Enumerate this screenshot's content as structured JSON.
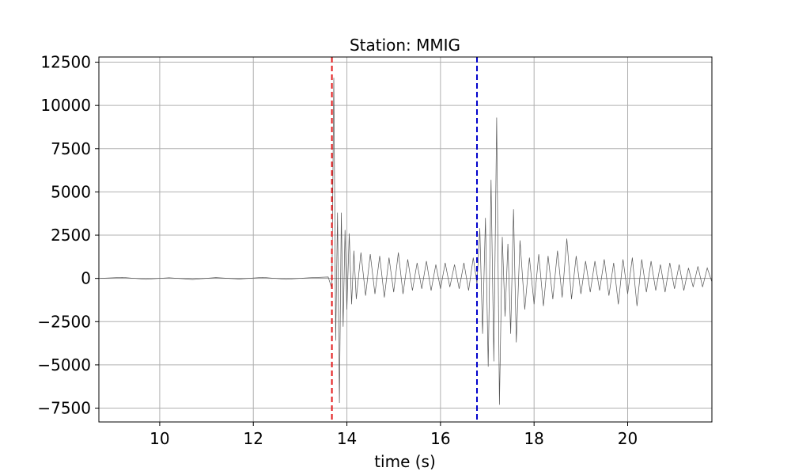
{
  "chart_data": {
    "type": "line",
    "title": "Station: MMIG",
    "xlabel": "time (s)",
    "ylabel": "",
    "xlim": [
      8.7,
      21.8
    ],
    "ylim": [
      -8300,
      12800
    ],
    "grid": true,
    "x_ticks": [
      10,
      12,
      14,
      16,
      18,
      20
    ],
    "y_ticks": [
      -7500,
      -5000,
      -2500,
      0,
      2500,
      5000,
      7500,
      10000,
      12500
    ],
    "x_tick_labels": [
      "10",
      "12",
      "14",
      "16",
      "18",
      "20"
    ],
    "y_tick_labels": [
      "−7500",
      "−5000",
      "−2500",
      "0",
      "2500",
      "5000",
      "7500",
      "10000",
      "12500"
    ],
    "colors": {
      "trace": "#555555",
      "p_pick": "#e31a1c",
      "s_pick": "#0000cc",
      "grid": "#b0b0b0",
      "zero_line": "#999999"
    },
    "series": [
      {
        "x": [
          8.7,
          9.2,
          9.7,
          10.2,
          10.7,
          11.2,
          11.7,
          12.2,
          12.7,
          13.2,
          13.6,
          13.68,
          13.72,
          13.76,
          13.8,
          13.84,
          13.88,
          13.92,
          13.96,
          14.0,
          14.05,
          14.1,
          14.15,
          14.2,
          14.3,
          14.4,
          14.5,
          14.6,
          14.7,
          14.8,
          14.9,
          15.0,
          15.1,
          15.2,
          15.3,
          15.4,
          15.5,
          15.6,
          15.7,
          15.8,
          15.9,
          16.0,
          16.1,
          16.2,
          16.3,
          16.4,
          16.5,
          16.6,
          16.7,
          16.78,
          16.84,
          16.9,
          16.96,
          17.02,
          17.08,
          17.14,
          17.2,
          17.26,
          17.32,
          17.38,
          17.44,
          17.5,
          17.56,
          17.62,
          17.7,
          17.8,
          17.9,
          18.0,
          18.1,
          18.2,
          18.3,
          18.4,
          18.5,
          18.6,
          18.7,
          18.8,
          18.9,
          19.0,
          19.1,
          19.2,
          19.3,
          19.4,
          19.5,
          19.6,
          19.7,
          19.8,
          19.9,
          20.0,
          20.1,
          20.2,
          20.3,
          20.4,
          20.5,
          20.6,
          20.7,
          20.8,
          20.9,
          21.0,
          21.1,
          21.2,
          21.3,
          21.4,
          21.5,
          21.6,
          21.7,
          21.8
        ],
        "y": [
          0,
          60,
          -50,
          40,
          -60,
          50,
          -40,
          60,
          -50,
          40,
          80,
          -600,
          11600,
          -3600,
          3800,
          -7200,
          3800,
          -2800,
          2800,
          -1800,
          2600,
          -1500,
          1600,
          -1200,
          1500,
          -1000,
          1400,
          -900,
          1300,
          -1100,
          1200,
          -800,
          1500,
          -900,
          1100,
          -700,
          900,
          -600,
          1000,
          -700,
          800,
          -600,
          900,
          -500,
          800,
          -600,
          900,
          -700,
          1200,
          -300,
          2900,
          -3200,
          3500,
          -5100,
          5700,
          -4800,
          9300,
          -7300,
          2400,
          -2200,
          2000,
          -3200,
          4000,
          -3700,
          2200,
          -1800,
          1200,
          -1500,
          1400,
          -1600,
          1300,
          -1200,
          1600,
          -1100,
          2300,
          -1200,
          1300,
          -900,
          1000,
          -800,
          1000,
          -700,
          1100,
          -1000,
          900,
          -1500,
          1100,
          -900,
          1200,
          -1600,
          1100,
          -800,
          1000,
          -700,
          800,
          -800,
          900,
          -600,
          800,
          -700,
          600,
          -500,
          700,
          -500,
          600,
          -200
        ]
      }
    ],
    "vlines": [
      {
        "x": 13.68,
        "color": "#e31a1c",
        "style": "dashed"
      },
      {
        "x": 16.78,
        "color": "#0000cc",
        "style": "dashed"
      }
    ]
  }
}
